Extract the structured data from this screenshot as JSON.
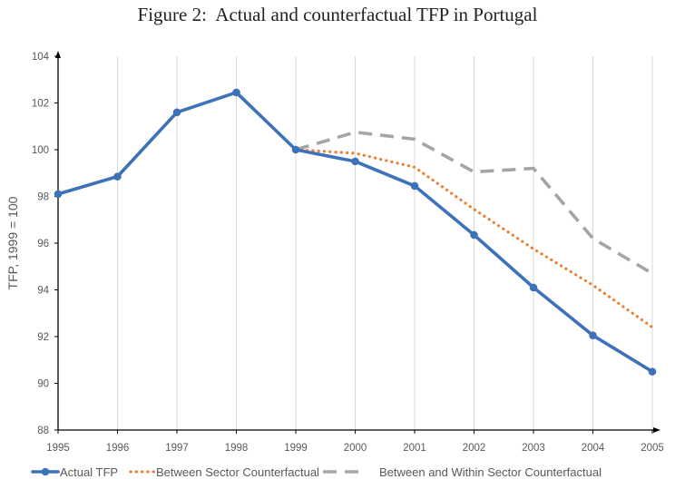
{
  "chart_data": {
    "type": "line",
    "title": "Figure 2:  Actual and counterfactual TFP in Portugal",
    "xlabel": "",
    "ylabel": "TFP, 1999 = 100",
    "x": [
      "1995",
      "1996",
      "1997",
      "1998",
      "1999",
      "2000",
      "2001",
      "2002",
      "2003",
      "2004",
      "2005"
    ],
    "ylim": [
      88,
      104
    ],
    "yticks": [
      88,
      90,
      92,
      94,
      96,
      98,
      100,
      102,
      104
    ],
    "grid": "vertical",
    "legend_position": "bottom",
    "series": [
      {
        "name": "Actual TFP",
        "color": "#3E72B8",
        "style": "solid-markers",
        "values": [
          98.1,
          98.85,
          101.6,
          102.45,
          100.0,
          99.5,
          98.45,
          96.35,
          94.1,
          92.05,
          90.5
        ]
      },
      {
        "name": "Between Sector Counterfactual",
        "color": "#ED7D31",
        "style": "dotted",
        "values": [
          null,
          null,
          null,
          null,
          100.0,
          99.85,
          99.25,
          97.45,
          95.75,
          94.2,
          92.4
        ]
      },
      {
        "name": "Between and Within Sector Counterfactual",
        "color": "#A5A5A5",
        "style": "dashed",
        "values": [
          null,
          null,
          null,
          null,
          100.0,
          100.75,
          100.45,
          99.05,
          99.2,
          96.2,
          94.7
        ]
      }
    ]
  }
}
